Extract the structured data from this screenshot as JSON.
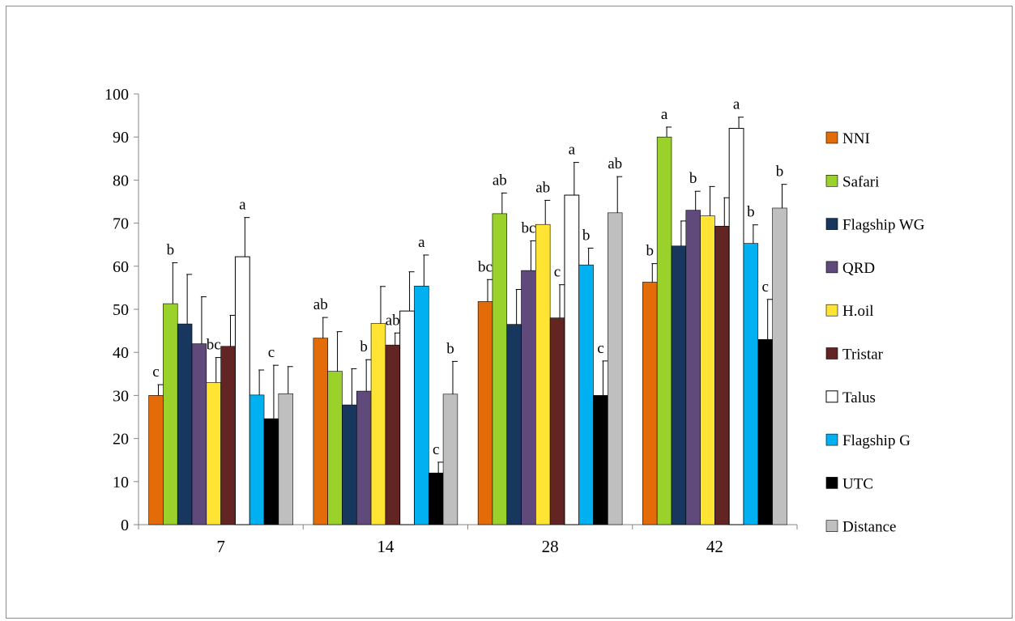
{
  "chart_data": {
    "type": "bar",
    "title": "",
    "xlabel": "",
    "ylabel": "",
    "ylim": [
      0,
      100
    ],
    "yticks": [
      0,
      10,
      20,
      30,
      40,
      50,
      60,
      70,
      80,
      90,
      100
    ],
    "categories": [
      "7",
      "14",
      "28",
      "42"
    ],
    "grid": false,
    "legend_position": "right",
    "series": [
      {
        "name": "NNI",
        "color": "#e36c09",
        "values": [
          30,
          43.3,
          51.8,
          56.3
        ],
        "errors": [
          2.5,
          4.8,
          5.1,
          4.3
        ],
        "labels": [
          "c",
          "ab",
          "bc",
          "b"
        ]
      },
      {
        "name": "Safari",
        "color": "#9bd12b",
        "values": [
          51.3,
          35.6,
          72.2,
          90.0
        ],
        "errors": [
          9.5,
          9.2,
          4.8,
          2.3
        ],
        "labels": [
          "b",
          "",
          "ab",
          "a"
        ]
      },
      {
        "name": "Flagship WG",
        "color": "#17375e",
        "values": [
          46.6,
          27.8,
          46.5,
          64.7
        ],
        "errors": [
          11.5,
          8.4,
          8.1,
          5.8
        ],
        "labels": [
          "",
          "",
          "",
          ""
        ]
      },
      {
        "name": "QRD",
        "color": "#604a7b",
        "values": [
          42.0,
          31.0,
          59.0,
          73.0
        ],
        "errors": [
          10.9,
          7.3,
          6.9,
          4.4
        ],
        "labels": [
          "",
          "b",
          "bc",
          "b"
        ]
      },
      {
        "name": "H.oil",
        "color": "#ffe433",
        "values": [
          33.0,
          46.7,
          69.7,
          71.7
        ],
        "errors": [
          5.8,
          8.6,
          5.6,
          6.8
        ],
        "labels": [
          "bc",
          "",
          "ab",
          ""
        ]
      },
      {
        "name": "Tristar",
        "color": "#632523",
        "values": [
          41.4,
          41.7,
          48.0,
          69.3
        ],
        "errors": [
          7.2,
          2.8,
          7.7,
          6.6
        ],
        "labels": [
          "",
          "ab",
          "c",
          ""
        ]
      },
      {
        "name": "Talus",
        "color": "#ffffff",
        "values": [
          62.2,
          49.6,
          76.5,
          92.0
        ],
        "errors": [
          9.1,
          9.1,
          7.6,
          2.6
        ],
        "labels": [
          "a",
          "",
          "a",
          "a"
        ]
      },
      {
        "name": "Flagship G",
        "color": "#00b0f0",
        "values": [
          30.1,
          55.4,
          60.3,
          65.3
        ],
        "errors": [
          5.8,
          7.2,
          3.9,
          4.3
        ],
        "labels": [
          "",
          "a",
          "b",
          "b"
        ]
      },
      {
        "name": "UTC",
        "color": "#000000",
        "values": [
          24.6,
          12.0,
          30.0,
          43.0
        ],
        "errors": [
          12.4,
          2.5,
          8.0,
          9.3
        ],
        "labels": [
          "c",
          "c",
          "c",
          "c"
        ]
      },
      {
        "name": "Distance",
        "color": "#bfbfbf",
        "values": [
          30.4,
          30.3,
          72.4,
          73.5
        ],
        "errors": [
          6.3,
          7.6,
          8.4,
          5.5
        ],
        "labels": [
          "",
          "b",
          "ab",
          "b"
        ]
      }
    ]
  }
}
